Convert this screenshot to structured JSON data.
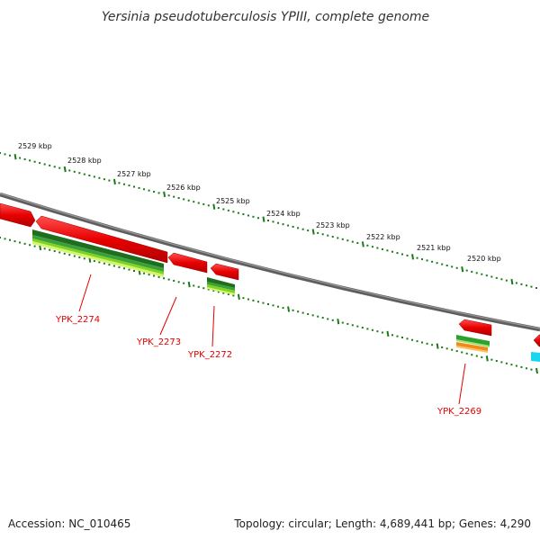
{
  "title": "Yersinia pseudotuberculosis YPIII, complete genome",
  "footer": {
    "accession": "Accession: NC_010465",
    "summary": "Topology: circular; Length: 4,689,441 bp; Genes: 4,290"
  },
  "colors": {
    "backbone": "#707070",
    "ticks": "#1a7a1a",
    "cds": "#e00000",
    "label": "#e10000"
  },
  "ticks": [
    {
      "label": "2529 kbp"
    },
    {
      "label": "2528 kbp"
    },
    {
      "label": "2527 kbp"
    },
    {
      "label": "2526 kbp"
    },
    {
      "label": "2525 kbp"
    },
    {
      "label": "2524 kbp"
    },
    {
      "label": "2523 kbp"
    },
    {
      "label": "2522 kbp"
    },
    {
      "label": "2521 kbp"
    },
    {
      "label": "2520 kbp"
    }
  ],
  "gene_labels": {
    "g2274": "YPK_2274",
    "g2273": "YPK_2273",
    "g2272": "YPK_2272",
    "g2269": "YPK_2269"
  }
}
